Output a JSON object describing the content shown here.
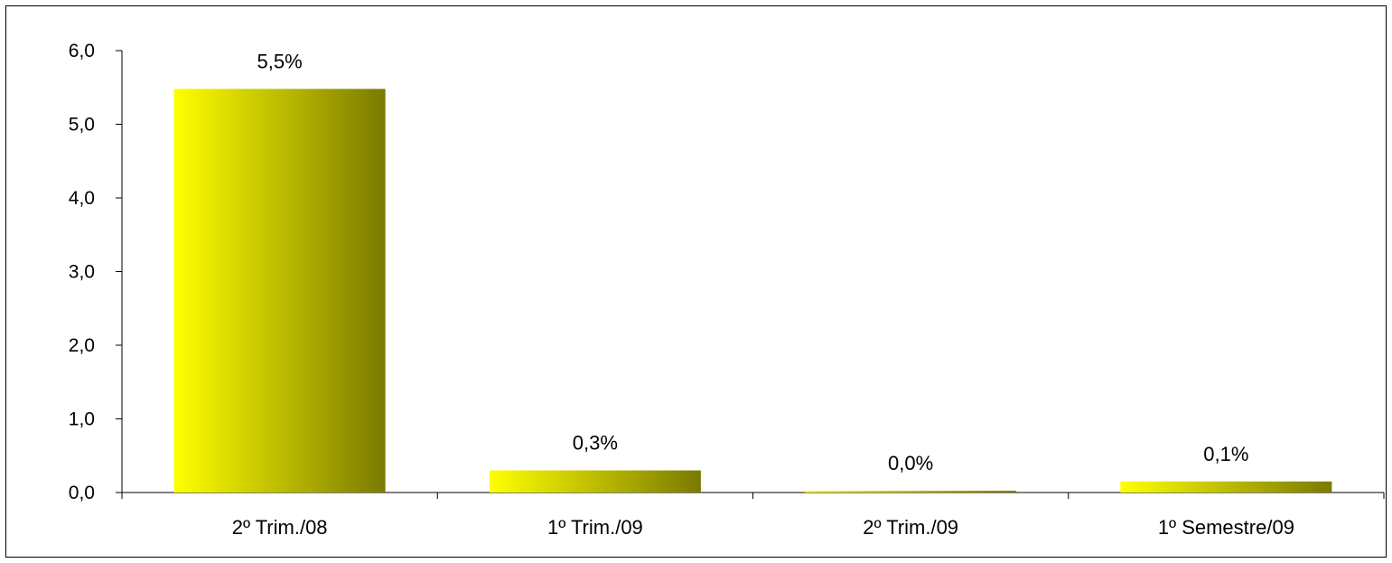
{
  "chart_data": {
    "type": "bar",
    "categories": [
      "2º Trim./08",
      "1º Trim./09",
      "2º Trim./09",
      "1º Semestre/09"
    ],
    "values": [
      5.48,
      0.3,
      0.02,
      0.15
    ],
    "data_labels": [
      "5,5%",
      "0,3%",
      "0,0%",
      "0,1%"
    ],
    "y_ticks": [
      "0,0",
      "1,0",
      "2,0",
      "3,0",
      "4,0",
      "5,0",
      "6,0"
    ],
    "ylim": [
      0,
      6
    ],
    "title": "",
    "xlabel": "",
    "ylabel": "",
    "grid": false,
    "legend": "none",
    "colors": {
      "bar_light": "#ffff00",
      "bar_dark": "#7a7a00",
      "axis": "#000000"
    }
  }
}
